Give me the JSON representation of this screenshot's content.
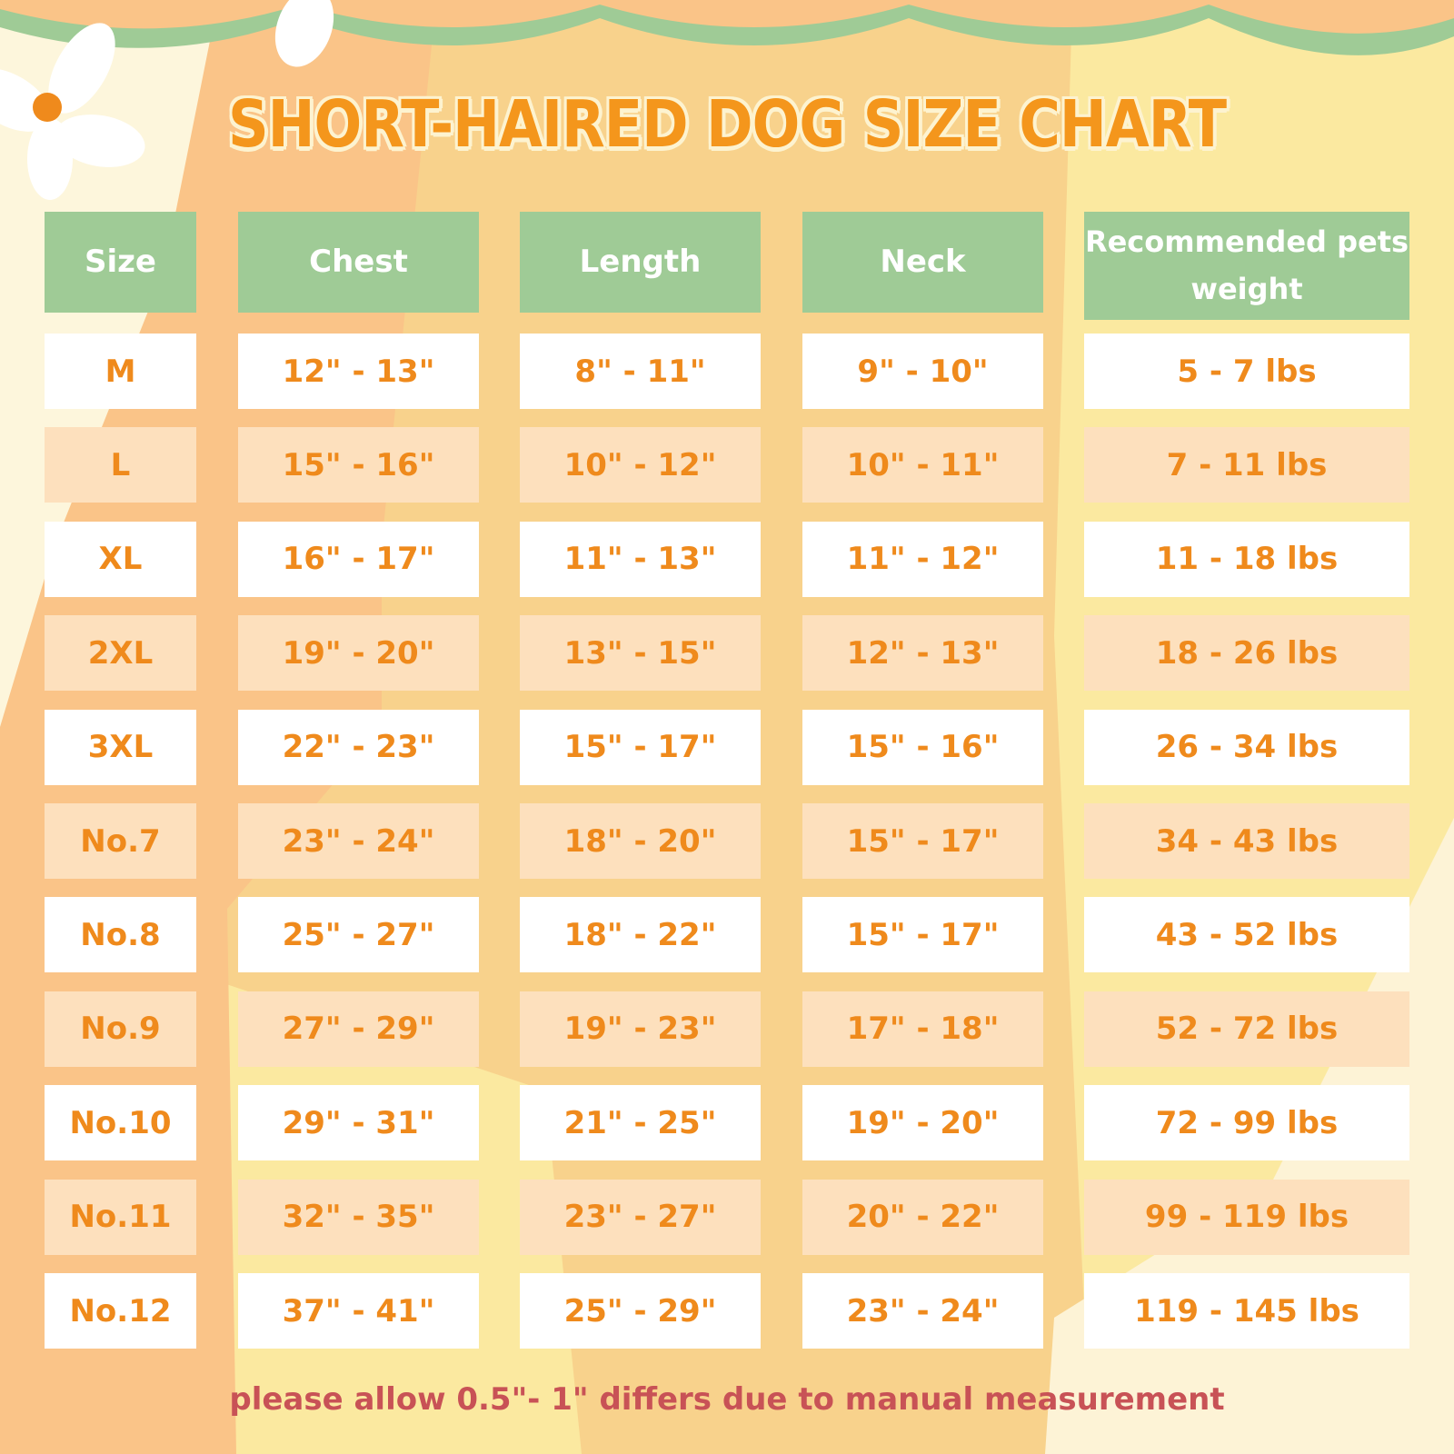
{
  "title": "SHORT-HAIRED DOG SIZE CHART",
  "colors": {
    "header_bg": "#9fcb96",
    "value_text": "#ef8a1c",
    "title": "#f4961c",
    "footer_text": "#c85256",
    "row_alt": "#fde0bd"
  },
  "table": {
    "headers": [
      "Size",
      "Chest",
      "Length",
      "Neck",
      "Recommended pets weight"
    ],
    "rows": [
      [
        "M",
        "12\" - 13\"",
        "8\" - 11\"",
        "9\" - 10\"",
        "5 - 7 lbs"
      ],
      [
        "L",
        "15\" - 16\"",
        "10\" - 12\"",
        "10\" - 11\"",
        "7 - 11 lbs"
      ],
      [
        "XL",
        "16\" - 17\"",
        "11\" - 13\"",
        "11\" - 12\"",
        "11 - 18 lbs"
      ],
      [
        "2XL",
        "19\" - 20\"",
        "13\" - 15\"",
        "12\" - 13\"",
        "18 - 26 lbs"
      ],
      [
        "3XL",
        "22\" - 23\"",
        "15\" - 17\"",
        "15\" - 16\"",
        "26 - 34 lbs"
      ],
      [
        "No.7",
        "23\" - 24\"",
        "18\" - 20\"",
        "15\" - 17\"",
        "34 - 43 lbs"
      ],
      [
        "No.8",
        "25\" - 27\"",
        "18\" - 22\"",
        "15\" - 17\"",
        "43 - 52 lbs"
      ],
      [
        "No.9",
        "27\" - 29\"",
        "19\" - 23\"",
        "17\" - 18\"",
        "52 - 72 lbs"
      ],
      [
        "No.10",
        "29\" - 31\"",
        "21\" - 25\"",
        "19\" - 20\"",
        "72 - 99 lbs"
      ],
      [
        "No.11",
        "32\" - 35\"",
        "23\" - 27\"",
        "20\" - 22\"",
        "99 - 119 lbs"
      ],
      [
        "No.12",
        "37\" - 41\"",
        "25\" - 29\"",
        "23\" - 24\"",
        "119 - 145 lbs"
      ]
    ]
  },
  "footer": "please allow 0.5\"- 1\" differs due to manual measurement"
}
